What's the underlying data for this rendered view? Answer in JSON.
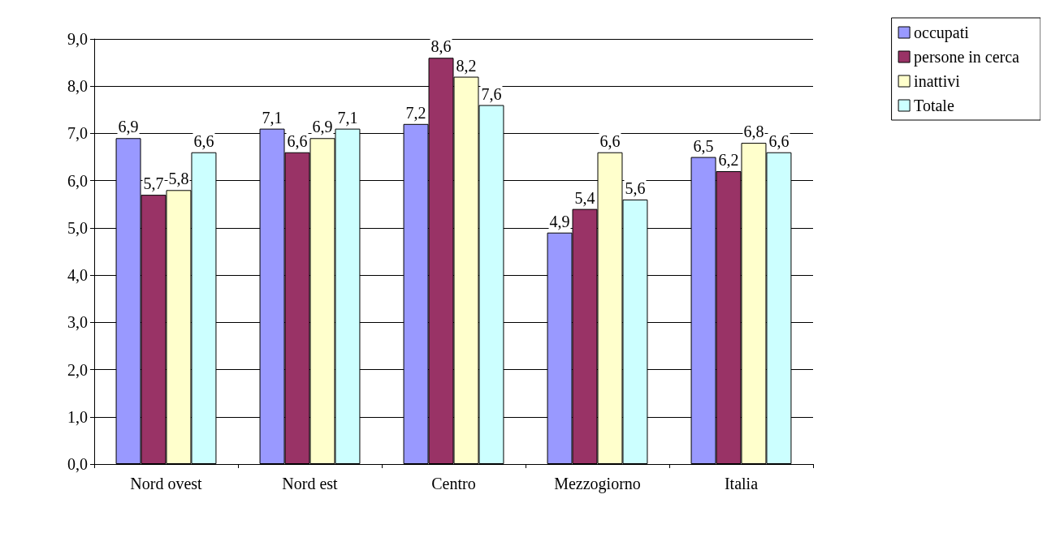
{
  "chart_data": {
    "type": "bar",
    "categories": [
      "Nord ovest",
      "Nord est",
      "Centro",
      "Mezzogiorno",
      "Italia"
    ],
    "series": [
      {
        "name": "occupati",
        "color": "#9999ff",
        "values": [
          6.9,
          7.1,
          7.2,
          4.9,
          6.5
        ],
        "value_labels": [
          "6,9",
          "7,1",
          "7,2",
          "4,9",
          "6,5"
        ]
      },
      {
        "name": "persone in cerca",
        "color": "#993366",
        "values": [
          5.7,
          6.6,
          8.6,
          5.4,
          6.2
        ],
        "value_labels": [
          "5,7",
          "6,6",
          "8,6",
          "5,4",
          "6,2"
        ]
      },
      {
        "name": "inattivi",
        "color": "#ffffcc",
        "values": [
          5.8,
          6.9,
          8.2,
          6.6,
          6.8
        ],
        "value_labels": [
          "5,8",
          "6,9",
          "8,2",
          "6,6",
          "6,8"
        ]
      },
      {
        "name": "Totale",
        "color": "#ccffff",
        "values": [
          6.6,
          7.1,
          7.6,
          5.6,
          6.6
        ],
        "value_labels": [
          "6,6",
          "7,1",
          "7,6",
          "5,6",
          "6,6"
        ]
      }
    ],
    "ylim": [
      0,
      9
    ],
    "yticks": [
      {
        "value": 0,
        "label": "0,0"
      },
      {
        "value": 1,
        "label": "1,0"
      },
      {
        "value": 2,
        "label": "2,0"
      },
      {
        "value": 3,
        "label": "3,0"
      },
      {
        "value": 4,
        "label": "4,0"
      },
      {
        "value": 5,
        "label": "5,0"
      },
      {
        "value": 6,
        "label": "6,0"
      },
      {
        "value": 7,
        "label": "7,0"
      },
      {
        "value": 8,
        "label": "8,0"
      },
      {
        "value": 9,
        "label": "9,0"
      }
    ],
    "grid": "y",
    "legend": "top right"
  }
}
